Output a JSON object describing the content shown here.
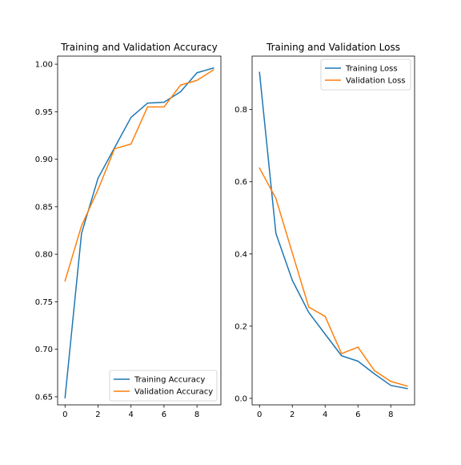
{
  "chart_data": [
    {
      "type": "line",
      "title": "Training and Validation Accuracy",
      "xlabel": "",
      "ylabel": "",
      "x": [
        0,
        1,
        2,
        3,
        4,
        5,
        6,
        7,
        8,
        9
      ],
      "xlim": [
        -0.45,
        9.45
      ],
      "ylim": [
        0.6415,
        1.0085
      ],
      "xticks": [
        0,
        2,
        4,
        6,
        8
      ],
      "yticks": [
        0.65,
        0.7,
        0.75,
        0.8,
        0.85,
        0.9,
        0.95,
        1.0
      ],
      "ytick_labels": [
        "0.65",
        "0.70",
        "0.75",
        "0.80",
        "0.85",
        "0.90",
        "0.95",
        "1.00"
      ],
      "grid": false,
      "legend_position": "lower-right",
      "series": [
        {
          "name": "Training Accuracy",
          "color": "#1f77b4",
          "values": [
            0.649,
            0.822,
            0.88,
            0.912,
            0.944,
            0.959,
            0.96,
            0.971,
            0.991,
            0.996
          ]
        },
        {
          "name": "Validation Accuracy",
          "color": "#ff7f0e",
          "values": [
            0.772,
            0.83,
            0.868,
            0.911,
            0.916,
            0.955,
            0.955,
            0.978,
            0.983,
            0.994
          ]
        }
      ]
    },
    {
      "type": "line",
      "title": "Training and Validation Loss",
      "xlabel": "",
      "ylabel": "",
      "x": [
        0,
        1,
        2,
        3,
        4,
        5,
        6,
        7,
        8,
        9
      ],
      "xlim": [
        -0.45,
        9.45
      ],
      "ylim": [
        -0.018,
        0.948
      ],
      "xticks": [
        0,
        2,
        4,
        6,
        8
      ],
      "yticks": [
        0.0,
        0.2,
        0.4,
        0.6,
        0.8
      ],
      "ytick_labels": [
        "0.0",
        "0.2",
        "0.4",
        "0.6",
        "0.8"
      ],
      "grid": false,
      "legend_position": "upper-right",
      "series": [
        {
          "name": "Training Loss",
          "color": "#1f77b4",
          "values": [
            0.903,
            0.457,
            0.327,
            0.238,
            0.178,
            0.118,
            0.103,
            0.068,
            0.036,
            0.027
          ]
        },
        {
          "name": "Validation Loss",
          "color": "#ff7f0e",
          "values": [
            0.638,
            0.554,
            0.403,
            0.253,
            0.227,
            0.124,
            0.142,
            0.077,
            0.047,
            0.034
          ]
        }
      ]
    }
  ]
}
